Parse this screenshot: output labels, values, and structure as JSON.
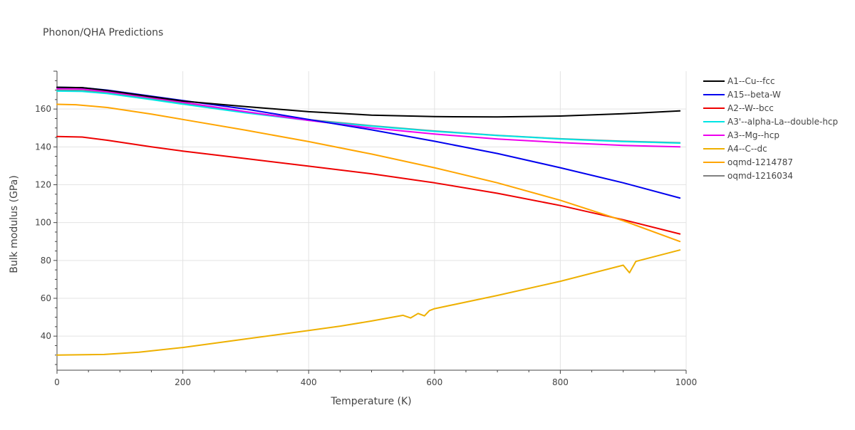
{
  "chart_data": {
    "type": "line",
    "title": "Phonon/QHA Predictions",
    "xlabel": "Temperature (K)",
    "ylabel": "Bulk modulus (GPa)",
    "xlim": [
      0,
      1000
    ],
    "ylim": [
      22,
      180
    ],
    "xticks": [
      0,
      200,
      400,
      600,
      800,
      1000
    ],
    "yticks": [
      40,
      60,
      80,
      100,
      120,
      140,
      160
    ],
    "grid": true,
    "legend_position": "right",
    "series": [
      {
        "name": "A1--Cu--fcc",
        "color": "#000000",
        "x": [
          0,
          40,
          80,
          150,
          200,
          300,
          400,
          500,
          600,
          700,
          800,
          900,
          990
        ],
        "y": [
          171.5,
          171.3,
          169.8,
          166.5,
          164.2,
          161.3,
          158.6,
          156.8,
          156.0,
          155.8,
          156.3,
          157.5,
          159.0
        ]
      },
      {
        "name": "A15--beta-W",
        "color": "#0000ee",
        "x": [
          0,
          40,
          80,
          150,
          200,
          300,
          400,
          500,
          600,
          700,
          800,
          900,
          990
        ],
        "y": [
          171.5,
          171.3,
          170.0,
          166.8,
          164.5,
          160.0,
          154.5,
          149.0,
          143.0,
          136.5,
          129.0,
          121.0,
          113.0
        ]
      },
      {
        "name": "A2--W--bcc",
        "color": "#ee0000",
        "x": [
          0,
          40,
          80,
          150,
          200,
          300,
          400,
          500,
          600,
          700,
          800,
          900,
          990
        ],
        "y": [
          145.5,
          145.2,
          143.5,
          140.0,
          137.8,
          133.8,
          129.8,
          125.8,
          121.0,
          115.5,
          109.0,
          101.5,
          94.0
        ]
      },
      {
        "name": "A3'--alpha-La--double-hcp",
        "color": "#00e5e5",
        "x": [
          0,
          40,
          80,
          150,
          200,
          300,
          400,
          500,
          600,
          700,
          800,
          900,
          990
        ],
        "y": [
          169.5,
          169.3,
          168.2,
          165.0,
          162.6,
          158.0,
          154.0,
          151.0,
          148.2,
          146.0,
          144.2,
          142.8,
          142.0
        ]
      },
      {
        "name": "A3--Mg--hcp",
        "color": "#ee00ee",
        "x": [
          0,
          40,
          80,
          150,
          200,
          300,
          400,
          500,
          600,
          700,
          800,
          900,
          990
        ],
        "y": [
          170.8,
          170.6,
          169.2,
          166.0,
          163.6,
          158.6,
          154.0,
          150.0,
          146.8,
          144.2,
          142.3,
          140.8,
          140.0
        ]
      },
      {
        "name": "A4--C--dc",
        "color": "#eeb000",
        "x": [
          0,
          75,
          130,
          200,
          300,
          400,
          450,
          500,
          550,
          562,
          574,
          584,
          592,
          600,
          700,
          800,
          900,
          910,
          920,
          990
        ],
        "y": [
          30.0,
          30.3,
          31.5,
          34.0,
          38.5,
          43.0,
          45.3,
          48.0,
          51.0,
          49.6,
          52.0,
          50.7,
          53.5,
          54.5,
          61.5,
          69.0,
          77.5,
          73.5,
          79.5,
          85.5
        ]
      },
      {
        "name": "oqmd-1214787",
        "color": "#ffa500",
        "x": [
          0,
          30,
          80,
          150,
          200,
          300,
          400,
          500,
          600,
          700,
          800,
          900,
          990
        ],
        "y": [
          162.5,
          162.3,
          160.8,
          157.3,
          154.5,
          148.8,
          142.8,
          136.2,
          129.0,
          121.0,
          111.8,
          101.0,
          90.0
        ]
      },
      {
        "name": "oqmd-1216034",
        "color": "#808080",
        "x": [
          0,
          40,
          80,
          150,
          200,
          300,
          400,
          500,
          600,
          700,
          800,
          900,
          990
        ],
        "y": [
          170.0,
          169.8,
          168.7,
          165.6,
          163.2,
          158.4,
          154.4,
          151.2,
          148.4,
          146.1,
          144.3,
          143.0,
          142.2
        ]
      }
    ]
  }
}
